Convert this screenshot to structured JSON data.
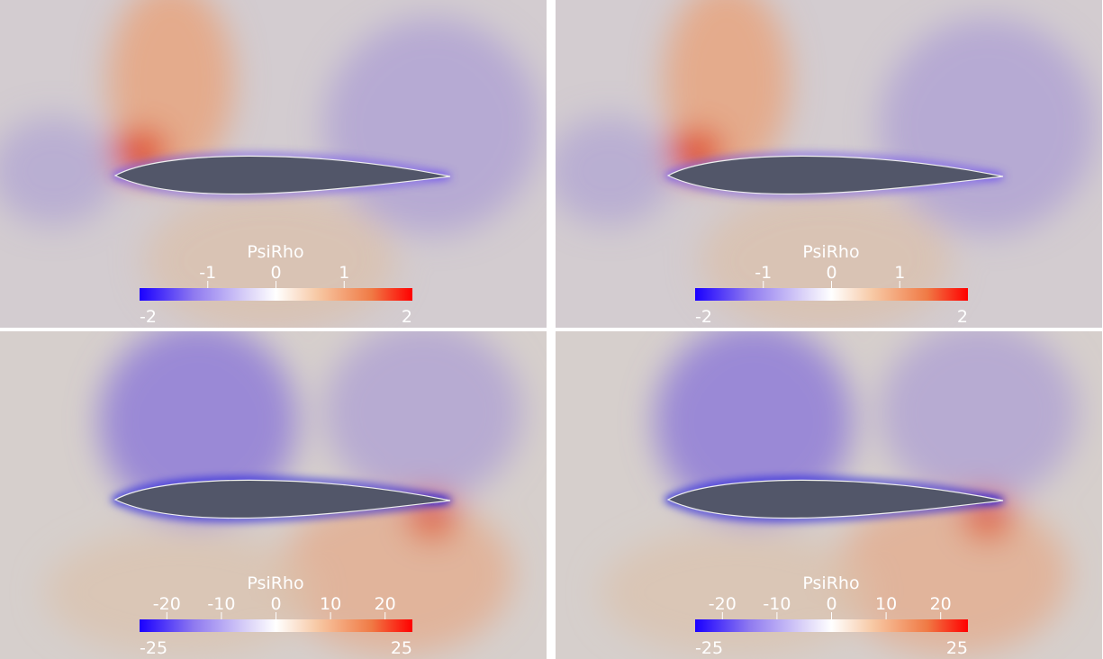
{
  "panels": [
    {
      "colorbar": {
        "title": "PsiRho",
        "range": [
          -2,
          2
        ],
        "ticks": [
          -1,
          0,
          1
        ],
        "min_label": "-2",
        "max_label": "2"
      }
    },
    {
      "colorbar": {
        "title": "PsiRho",
        "range": [
          -2,
          2
        ],
        "ticks": [
          -1,
          0,
          1
        ],
        "min_label": "-2",
        "max_label": "2"
      }
    },
    {
      "colorbar": {
        "title": "PsiRho",
        "range": [
          -25,
          25
        ],
        "ticks": [
          -20,
          -10,
          0,
          10,
          20
        ],
        "min_label": "-25",
        "max_label": "25"
      }
    },
    {
      "colorbar": {
        "title": "PsiRho",
        "range": [
          -25,
          25
        ],
        "ticks": [
          -20,
          -10,
          0,
          10,
          20
        ],
        "min_label": "-25",
        "max_label": "25"
      }
    }
  ]
}
